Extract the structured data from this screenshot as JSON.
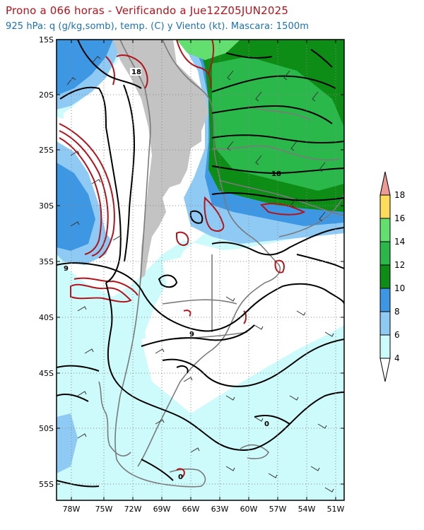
{
  "header": {
    "title": "Prono a 066 horas - Verificando a Jue12Z05JUN2025",
    "subtitle": "925 hPa: q (g/kg,somb), temp. (C) y Viento (kt). Mascara: 1500m"
  },
  "map": {
    "lat_labels": [
      "15S",
      "20S",
      "25S",
      "30S",
      "35S",
      "40S",
      "45S",
      "50S",
      "55S"
    ],
    "lon_labels": [
      "78W",
      "75W",
      "72W",
      "69W",
      "66W",
      "63W",
      "60W",
      "57W",
      "54W",
      "51W"
    ],
    "contour_labels": [
      {
        "text": "18",
        "name": "contour-label-18-west"
      },
      {
        "text": "18",
        "name": "contour-label-18-east"
      },
      {
        "text": "9",
        "name": "contour-label-9-west"
      },
      {
        "text": "9",
        "name": "contour-label-9-central"
      },
      {
        "text": "0",
        "name": "contour-label-0-south"
      },
      {
        "text": "0",
        "name": "contour-label-0-tip"
      }
    ],
    "colors": {
      "q_4_6": "#cdfafa",
      "q_6_8": "#8fcaf5",
      "q_8_10": "#3e97e3",
      "q_10_12": "#0d8c16",
      "q_12_14": "#2bb84b",
      "q_14_16": "#62df6e",
      "q_16_18": "#fcdc5a",
      "q_gt18": "#ef9b95",
      "mask": "#c3c3c3",
      "coast": "#7a7a7a",
      "temp_contour": "#000000",
      "dewpoint_contour": "#b3131b"
    }
  },
  "colorbar": {
    "labels": [
      "18",
      "16",
      "14",
      "12",
      "10",
      "8",
      "6",
      "4"
    ],
    "colors": [
      "#ef9b95",
      "#fcdc5a",
      "#62df6e",
      "#2bb84b",
      "#0d8c16",
      "#3e97e3",
      "#8fcaf5",
      "#cdfafa",
      "#ffffff"
    ]
  }
}
